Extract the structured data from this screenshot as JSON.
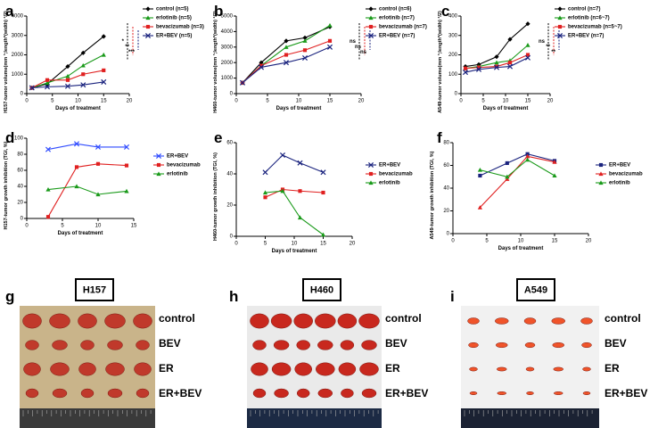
{
  "chart_data": [
    {
      "type": "line",
      "panel": "a",
      "xlabel": "Days of treatment",
      "ylabel": "H157-tumor volume(mm ³;length*(width) ²/2)",
      "xlim": [
        0,
        20
      ],
      "xticks": [
        0,
        5,
        10,
        15,
        20
      ],
      "ylim": [
        0,
        4000
      ],
      "yticks": [
        0,
        1000,
        2000,
        3000,
        4000
      ],
      "x": [
        1,
        4,
        8,
        11,
        15
      ],
      "series": [
        {
          "name": "control (n=5)",
          "color": "#000000",
          "marker": "diamond",
          "values": [
            300,
            500,
            1400,
            2100,
            2950
          ]
        },
        {
          "name": "erlotinib (n=5)",
          "color": "#1a9a1a",
          "marker": "triangle",
          "values": [
            300,
            550,
            900,
            1450,
            2000
          ]
        },
        {
          "name": "bevacizumab (n=3)",
          "color": "#e02020",
          "marker": "square",
          "values": [
            300,
            700,
            700,
            1000,
            1200
          ]
        },
        {
          "name": "ER+BEV (n=5)",
          "color": "#1a237e",
          "marker": "x",
          "values": [
            300,
            350,
            380,
            450,
            600
          ]
        }
      ],
      "annotations": [
        "*",
        "**",
        "***"
      ]
    },
    {
      "type": "line",
      "panel": "b",
      "xlabel": "Days of treatment",
      "ylabel": "H460-tumor volume(mm ³;length*(width) ²/2)",
      "xlim": [
        0,
        20
      ],
      "xticks": [
        0,
        5,
        10,
        15,
        20
      ],
      "ylim": [
        0,
        5000
      ],
      "yticks": [
        0,
        1000,
        2000,
        3000,
        4000,
        5000
      ],
      "x": [
        1,
        4,
        8,
        11,
        15
      ],
      "series": [
        {
          "name": "control (n=6)",
          "color": "#000000",
          "marker": "diamond",
          "values": [
            700,
            2000,
            3400,
            3600,
            4300
          ]
        },
        {
          "name": "erlotinib (n=7)",
          "color": "#1a9a1a",
          "marker": "triangle",
          "values": [
            700,
            1800,
            3000,
            3400,
            4400
          ]
        },
        {
          "name": "bevacizumab (n=7)",
          "color": "#e02020",
          "marker": "square",
          "values": [
            700,
            1800,
            2500,
            2800,
            3400
          ]
        },
        {
          "name": "ER+BEV (n=7)",
          "color": "#1a237e",
          "marker": "x",
          "values": [
            700,
            1700,
            2000,
            2300,
            3000
          ]
        }
      ],
      "annotations": [
        "ns",
        "ns",
        "ns"
      ]
    },
    {
      "type": "line",
      "panel": "c",
      "xlabel": "Days of treatment",
      "ylabel": "A549-tumor volume(mm ³;length*(width) ²/2)",
      "xlim": [
        0,
        20
      ],
      "xticks": [
        0,
        5,
        10,
        15,
        20
      ],
      "ylim": [
        0,
        400
      ],
      "yticks": [
        0,
        100,
        200,
        300,
        400
      ],
      "x": [
        1,
        4,
        8,
        11,
        15
      ],
      "series": [
        {
          "name": "control (n=7)",
          "color": "#000000",
          "marker": "diamond",
          "values": [
            140,
            150,
            190,
            280,
            360
          ]
        },
        {
          "name": "erlotinib (n=6~7)",
          "color": "#1a9a1a",
          "marker": "triangle",
          "values": [
            130,
            140,
            160,
            170,
            250
          ]
        },
        {
          "name": "bevacizumab (n=5~7)",
          "color": "#e02020",
          "marker": "square",
          "values": [
            130,
            135,
            140,
            160,
            200
          ]
        },
        {
          "name": "ER+BEV (n=7)",
          "color": "#1a237e",
          "marker": "x",
          "values": [
            110,
            125,
            135,
            140,
            185
          ]
        }
      ],
      "annotations": [
        "ns",
        "**",
        "**"
      ]
    },
    {
      "type": "line",
      "panel": "d",
      "xlabel": "Days of treatment",
      "ylabel": "H157-tumor growth inhibition (TGI, %)",
      "xlim": [
        0,
        15
      ],
      "xticks": [
        0,
        5,
        10,
        15
      ],
      "ylim": [
        0,
        100
      ],
      "yticks": [
        0,
        20,
        40,
        60,
        80,
        100
      ],
      "x": [
        3,
        7,
        10,
        14
      ],
      "series": [
        {
          "name": "ER+BEV",
          "color": "#2f4bff",
          "marker": "x",
          "values": [
            86,
            93,
            89,
            89
          ]
        },
        {
          "name": "bevacizumab",
          "color": "#e02020",
          "marker": "square",
          "values": [
            2,
            64,
            68,
            66
          ]
        },
        {
          "name": "erlotinib",
          "color": "#1a9a1a",
          "marker": "triangle",
          "values": [
            36,
            40,
            30,
            34
          ]
        }
      ]
    },
    {
      "type": "line",
      "panel": "e",
      "xlabel": "Days of treatment",
      "ylabel": "H460-tumor growth inhibition (TGI, %)",
      "xlim": [
        0,
        20
      ],
      "xticks": [
        0,
        5,
        10,
        15,
        20
      ],
      "ylim": [
        0,
        60
      ],
      "yticks": [
        0,
        20,
        40,
        60
      ],
      "x": [
        5,
        8,
        11,
        15
      ],
      "series": [
        {
          "name": "ER+BEV",
          "color": "#1a237e",
          "marker": "x",
          "values": [
            41,
            52,
            47,
            41
          ]
        },
        {
          "name": "bevacizumab",
          "color": "#e02020",
          "marker": "square",
          "values": [
            25,
            30,
            29,
            28
          ]
        },
        {
          "name": "erlotinib",
          "color": "#1a9a1a",
          "marker": "triangle",
          "values": [
            28,
            29,
            12,
            1
          ]
        }
      ]
    },
    {
      "type": "line",
      "panel": "f",
      "xlabel": "Days of treatment",
      "ylabel": "A549-tumor growth inhibition (TGI, %)",
      "xlim": [
        0,
        20
      ],
      "xticks": [
        0,
        5,
        10,
        15,
        20
      ],
      "ylim": [
        0,
        80
      ],
      "yticks": [
        0,
        20,
        40,
        60,
        80
      ],
      "x": [
        4,
        8,
        11,
        15
      ],
      "series": [
        {
          "name": "ER+BEV",
          "color": "#1a237e",
          "marker": "square",
          "values": [
            51,
            62,
            70,
            64
          ]
        },
        {
          "name": "bevacizumab",
          "color": "#e02020",
          "marker": "triangle",
          "values": [
            23,
            48,
            68,
            63
          ]
        },
        {
          "name": "erlotinib",
          "color": "#1a9a1a",
          "marker": "triangle",
          "values": [
            56,
            50,
            65,
            51
          ]
        }
      ]
    }
  ],
  "photos": [
    {
      "panel": "g",
      "title": "H157",
      "rows": [
        "control",
        "BEV",
        "ER",
        "ER+BEV"
      ]
    },
    {
      "panel": "h",
      "title": "H460",
      "rows": [
        "control",
        "BEV",
        "ER",
        "ER+BEV"
      ]
    },
    {
      "panel": "i",
      "title": "A549",
      "rows": [
        "control",
        "BEV",
        "ER",
        "ER+BEV"
      ]
    }
  ]
}
